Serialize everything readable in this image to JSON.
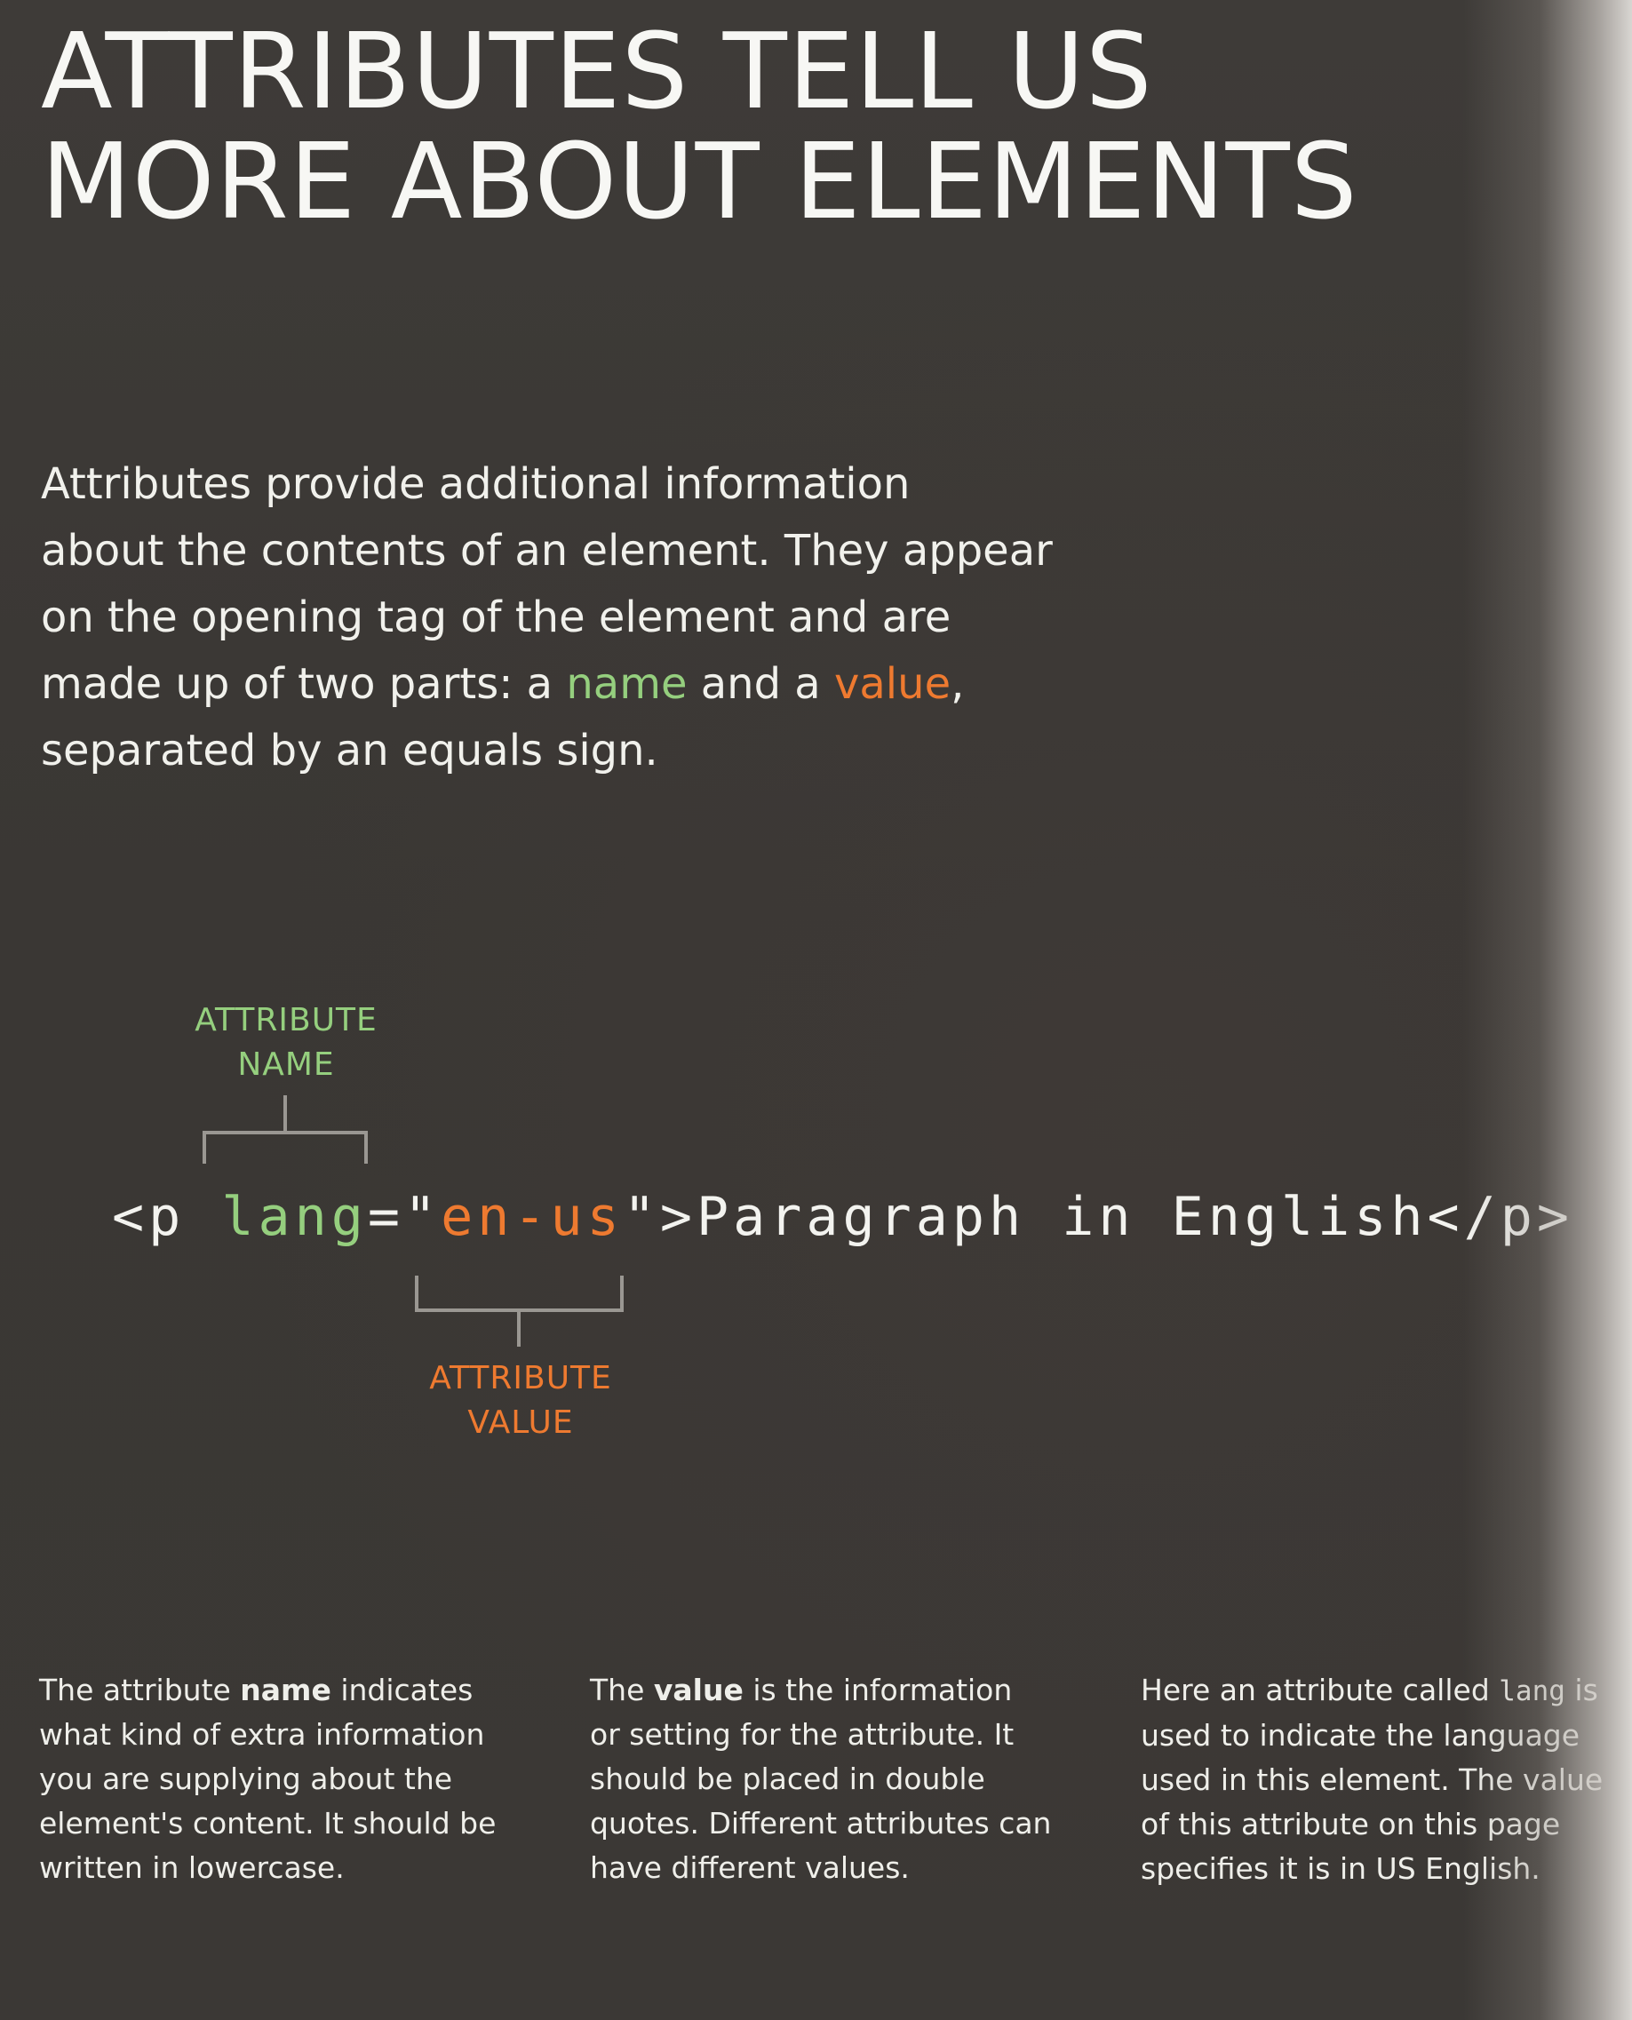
{
  "title": {
    "line1": "ATTRIBUTES TELL US",
    "line2": "MORE ABOUT ELEMENTS"
  },
  "intro": {
    "line1": "Attributes provide additional information",
    "line2": "about the contents of an element. They appear",
    "line3": "on the opening tag of the element and are",
    "line4_start": "made up of two parts: a ",
    "line4_name": "name",
    "line4_mid": " and a ",
    "line4_value": "value",
    "line4_end": ",",
    "line5": "separated by an equals sign."
  },
  "diagram": {
    "name_label": {
      "line1": "ATTRIBUTE",
      "line2": "NAME"
    },
    "value_label": {
      "line1": "ATTRIBUTE",
      "line2": "VALUE"
    },
    "code": {
      "open": "<p ",
      "attr_name": "lang",
      "equals": "=\"",
      "attr_value": "en-us",
      "close": "\">Paragraph in English</p>"
    },
    "colors": {
      "name": "#95cf7e",
      "value": "#ee7a30",
      "bracket": "#9a9792"
    }
  },
  "columns": {
    "col1": {
      "l1_pre": "The attribute ",
      "l1_bold": "name",
      "l1_post": " indicates",
      "l2": "what kind of extra information",
      "l3": "you are supplying about the",
      "l4": "element's content. It should be",
      "l5": "written in lowercase."
    },
    "col2": {
      "l1_pre": "The ",
      "l1_bold": "value",
      "l1_post": " is the information",
      "l2": "or setting for the attribute. It",
      "l3": "should be placed in double",
      "l4": "quotes. Different attributes can",
      "l5": "have different values."
    },
    "col3": {
      "l1_pre": "Here an attribute called ",
      "l1_code": "lang",
      "l1_post": " is",
      "l2": "used to indicate the language",
      "l3": "used in this element. The value",
      "l4": "of this attribute on this page",
      "l5": "specifies it is in US English."
    }
  },
  "theme": {
    "background": "#3d3a37",
    "text": "#f2f2ee"
  }
}
